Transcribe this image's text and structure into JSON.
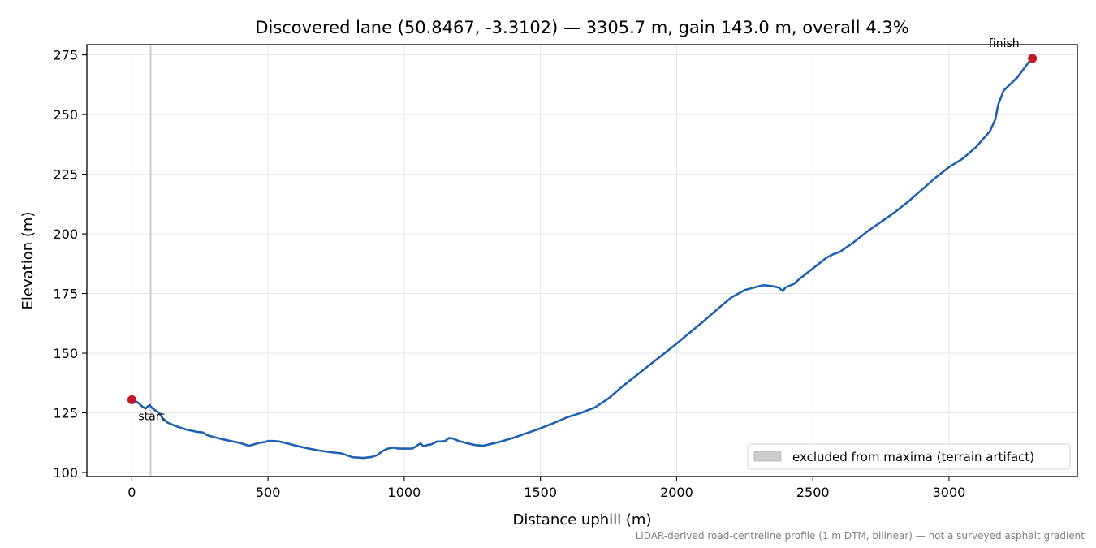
{
  "chart_data": {
    "type": "line",
    "title": "Discovered lane (50.8467, -3.3102) — 3305.7 m, gain 143.0 m, overall 4.3%",
    "xlabel": "Distance uphill (m)",
    "ylabel": "Elevation (m)",
    "xlim": [
      -165,
      3471
    ],
    "ylim": [
      98.3,
      279.3
    ],
    "x_ticks": [
      0,
      500,
      1000,
      1500,
      2000,
      2500,
      3000
    ],
    "y_ticks": [
      100,
      125,
      150,
      175,
      200,
      225,
      250,
      275
    ],
    "grid": true,
    "legend_placement": "lower-right",
    "legend": [
      {
        "label": "excluded from maxima (terrain artifact)",
        "color": "#cccccc"
      }
    ],
    "excluded_band": {
      "x": [
        66,
        72
      ],
      "color": "#cccccc"
    },
    "series": [
      {
        "color": "#2060b0",
        "x": [
          0,
          20,
          40,
          50,
          60,
          66,
          70,
          80,
          100,
          115,
          130,
          160,
          200,
          240,
          260,
          275,
          290,
          320,
          350,
          400,
          430,
          450,
          470,
          490,
          500,
          520,
          540,
          560,
          600,
          650,
          700,
          730,
          770,
          790,
          810,
          850,
          880,
          900,
          920,
          940,
          960,
          980,
          1000,
          1030,
          1050,
          1060,
          1070,
          1085,
          1100,
          1120,
          1135,
          1150,
          1165,
          1180,
          1200,
          1230,
          1260,
          1290,
          1320,
          1350,
          1400,
          1450,
          1500,
          1550,
          1600,
          1650,
          1700,
          1750,
          1800,
          1850,
          1900,
          1950,
          2000,
          2050,
          2100,
          2150,
          2200,
          2250,
          2300,
          2320,
          2350,
          2375,
          2390,
          2397,
          2405,
          2430,
          2450,
          2500,
          2550,
          2575,
          2600,
          2650,
          2700,
          2750,
          2800,
          2850,
          2900,
          2950,
          3000,
          3050,
          3100,
          3150,
          3170,
          3180,
          3200,
          3250,
          3280,
          3300,
          3306
        ],
        "y": [
          130.5,
          129.5,
          127.5,
          126.8,
          127.8,
          128.2,
          127.6,
          126.5,
          125.0,
          122.5,
          121.0,
          119.5,
          118.0,
          117.0,
          116.8,
          115.8,
          115.2,
          114.3,
          113.5,
          112.3,
          111.2,
          111.8,
          112.5,
          112.8,
          113.2,
          113.2,
          113.0,
          112.5,
          111.3,
          110.0,
          109.0,
          108.5,
          108.0,
          107.2,
          106.4,
          106.1,
          106.5,
          107.2,
          109.0,
          110.0,
          110.4,
          110.0,
          110.0,
          110.0,
          111.5,
          112.2,
          111.0,
          111.5,
          111.8,
          113.0,
          113.0,
          113.2,
          114.5,
          114.2,
          113.2,
          112.3,
          111.5,
          111.2,
          112.0,
          112.8,
          114.5,
          116.5,
          118.5,
          120.8,
          123.2,
          125.0,
          127.3,
          131.0,
          136.0,
          140.5,
          145.0,
          149.5,
          154.0,
          158.8,
          163.5,
          168.5,
          173.3,
          176.5,
          178.0,
          178.5,
          178.1,
          177.5,
          176.0,
          177.2,
          177.8,
          179.0,
          181.0,
          185.5,
          190.0,
          191.5,
          192.5,
          196.5,
          201.0,
          205.0,
          209.0,
          213.5,
          218.5,
          223.5,
          228.0,
          231.5,
          236.5,
          243.0,
          248.0,
          254.0,
          260.0,
          265.5,
          270.0,
          273.0,
          273.5
        ]
      }
    ],
    "annotations": [
      {
        "label": "start",
        "x": 0,
        "y": 130.5
      },
      {
        "label": "finish",
        "x": 3306,
        "y": 273.5
      }
    ],
    "endpoint_color": "#c0192a",
    "footnote": "LiDAR-derived road-centreline profile (1 m DTM, bilinear) — not a surveyed asphalt gradient"
  }
}
